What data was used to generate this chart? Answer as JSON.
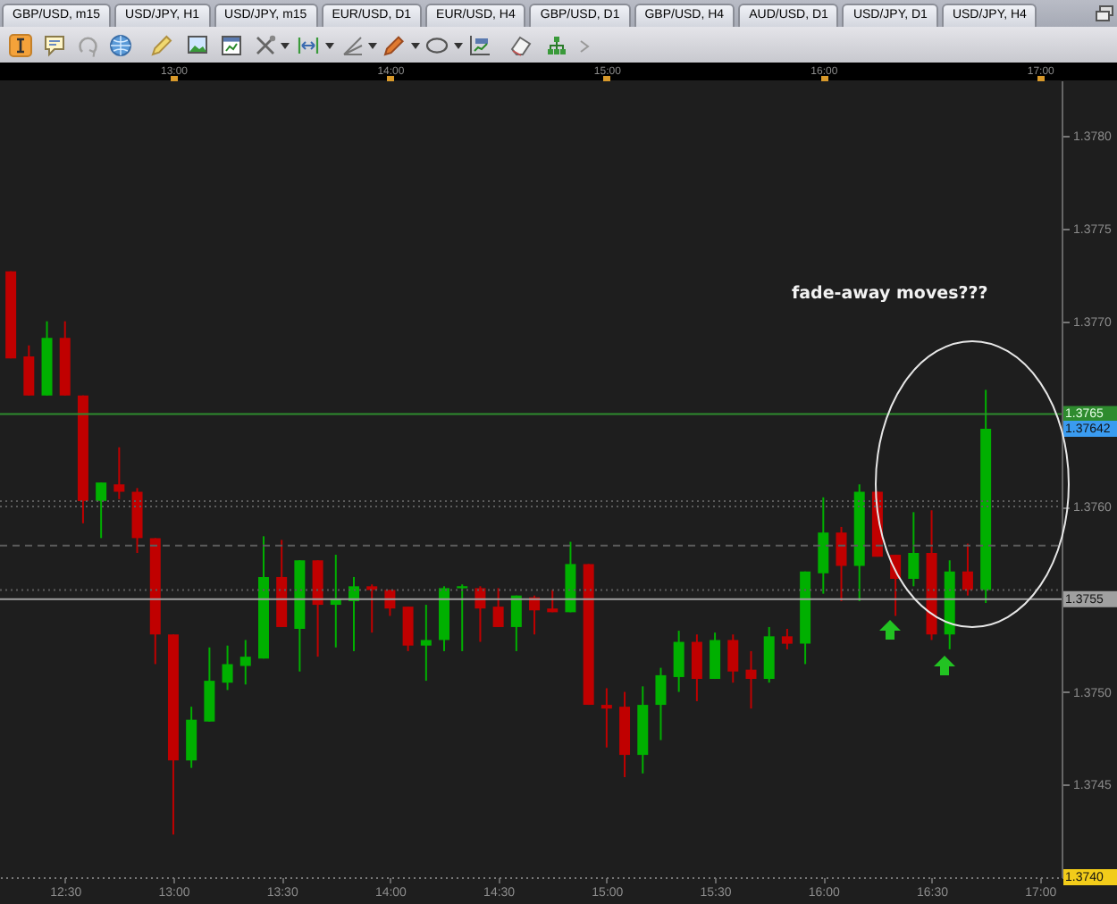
{
  "chart_data": {
    "type": "candlestick",
    "x": [
      12.25,
      12.3333,
      12.4167,
      12.5,
      12.5833,
      12.6667,
      12.75,
      12.8333,
      12.9167,
      13,
      13.0833,
      13.1667,
      13.25,
      13.3333,
      13.4167,
      13.5,
      13.5833,
      13.6667,
      13.75,
      13.8333,
      13.9167,
      14,
      14.0833,
      14.1667,
      14.25,
      14.3333,
      14.4167,
      14.5,
      14.5833,
      14.6667,
      14.75,
      14.8333,
      14.9167,
      15,
      15.0833,
      15.1667,
      15.25,
      15.3333,
      15.4167,
      15.5,
      15.5833,
      15.6667,
      15.75,
      15.8333,
      15.9167,
      16,
      16.0833,
      16.1667,
      16.25,
      16.3333,
      16.4167,
      16.5,
      16.5833,
      16.6667,
      16.75
    ],
    "ohlc": [
      [
        1.37727,
        1.37727,
        1.3768,
        1.3768
      ],
      [
        1.37681,
        1.37687,
        1.3766,
        1.3766
      ],
      [
        1.3766,
        1.377,
        1.3766,
        1.37691
      ],
      [
        1.37691,
        1.377,
        1.3766,
        1.3766
      ],
      [
        1.3766,
        1.3766,
        1.37591,
        1.37603
      ],
      [
        1.37603,
        1.37613,
        1.37583,
        1.37613
      ],
      [
        1.37612,
        1.37632,
        1.37604,
        1.37608
      ],
      [
        1.37608,
        1.3761,
        1.37575,
        1.37583
      ],
      [
        1.37583,
        1.37583,
        1.37515,
        1.37531
      ],
      [
        1.37531,
        1.37531,
        1.37423,
        1.37463
      ],
      [
        1.37463,
        1.37492,
        1.37459,
        1.37485
      ],
      [
        1.37484,
        1.37524,
        1.37484,
        1.37506
      ],
      [
        1.37505,
        1.37525,
        1.37501,
        1.37515
      ],
      [
        1.37514,
        1.37528,
        1.37504,
        1.37519
      ],
      [
        1.37518,
        1.37584,
        1.37518,
        1.37562
      ],
      [
        1.37562,
        1.37582,
        1.37535,
        1.37535
      ],
      [
        1.37534,
        1.37571,
        1.37511,
        1.37571
      ],
      [
        1.37571,
        1.37571,
        1.37519,
        1.37547
      ],
      [
        1.37547,
        1.37574,
        1.37524,
        1.3755
      ],
      [
        1.37549,
        1.37562,
        1.37522,
        1.37557
      ],
      [
        1.37557,
        1.37558,
        1.37532,
        1.37555
      ],
      [
        1.37555,
        1.37555,
        1.37541,
        1.37545
      ],
      [
        1.37546,
        1.37546,
        1.37522,
        1.37525
      ],
      [
        1.37525,
        1.37547,
        1.37506,
        1.37528
      ],
      [
        1.37528,
        1.37557,
        1.37522,
        1.37556
      ],
      [
        1.37556,
        1.37558,
        1.37522,
        1.37557
      ],
      [
        1.37556,
        1.37557,
        1.37527,
        1.37545
      ],
      [
        1.37546,
        1.37556,
        1.37535,
        1.37535
      ],
      [
        1.37535,
        1.37552,
        1.37522,
        1.37552
      ],
      [
        1.37551,
        1.37552,
        1.37531,
        1.37544
      ],
      [
        1.37545,
        1.37555,
        1.37543,
        1.37543
      ],
      [
        1.37543,
        1.37581,
        1.37543,
        1.37569
      ],
      [
        1.37569,
        1.37569,
        1.37493,
        1.37493
      ],
      [
        1.37493,
        1.37502,
        1.3747,
        1.37491
      ],
      [
        1.37492,
        1.375,
        1.37454,
        1.37466
      ],
      [
        1.37466,
        1.37503,
        1.37456,
        1.37493
      ],
      [
        1.37493,
        1.37513,
        1.37474,
        1.37509
      ],
      [
        1.37508,
        1.37533,
        1.375,
        1.37527
      ],
      [
        1.37527,
        1.37531,
        1.37495,
        1.37507
      ],
      [
        1.37507,
        1.37532,
        1.37507,
        1.37528
      ],
      [
        1.37528,
        1.37531,
        1.37505,
        1.37511
      ],
      [
        1.37512,
        1.37522,
        1.37491,
        1.37507
      ],
      [
        1.37507,
        1.37535,
        1.37505,
        1.3753
      ],
      [
        1.3753,
        1.37534,
        1.37523,
        1.37526
      ],
      [
        1.37526,
        1.37565,
        1.37515,
        1.37565
      ],
      [
        1.37564,
        1.37605,
        1.37553,
        1.37586
      ],
      [
        1.37586,
        1.37589,
        1.37549,
        1.37568
      ],
      [
        1.37568,
        1.37612,
        1.37549,
        1.37608
      ],
      [
        1.37608,
        1.37608,
        1.37573,
        1.37573
      ],
      [
        1.37574,
        1.37574,
        1.37541,
        1.37561
      ],
      [
        1.37561,
        1.37597,
        1.37557,
        1.37575
      ],
      [
        1.37575,
        1.37598,
        1.37528,
        1.37531
      ],
      [
        1.37531,
        1.37571,
        1.37523,
        1.37565
      ],
      [
        1.37565,
        1.3758,
        1.37552,
        1.37555
      ],
      [
        1.37555,
        1.37663,
        1.37548,
        1.37642
      ]
    ],
    "colors": [
      "#c00000",
      "#c00000",
      "#00b000",
      "#c00000",
      "#c00000",
      "#00b000",
      "#c00000",
      "#c00000",
      "#c00000",
      "#c00000",
      "#00b000",
      "#00b000",
      "#00b000",
      "#00b000",
      "#00b000",
      "#c00000",
      "#00b000",
      "#c00000",
      "#00b000",
      "#00b000",
      "#c00000",
      "#c00000",
      "#c00000",
      "#00b000",
      "#00b000",
      "#00b000",
      "#c00000",
      "#c00000",
      "#00b000",
      "#c00000",
      "#c00000",
      "#00b000",
      "#c00000",
      "#c00000",
      "#c00000",
      "#00b000",
      "#00b000",
      "#00b000",
      "#c00000",
      "#00b000",
      "#c00000",
      "#c00000",
      "#00b000",
      "#c00000",
      "#00b000",
      "#00b000",
      "#c00000",
      "#00b000",
      "#c00000",
      "#c00000",
      "#00b000",
      "#c00000",
      "#00b000",
      "#c00000",
      "#00b000"
    ],
    "xlim": [
      12.2,
      17.1
    ],
    "xticks": [
      {
        "value": 12.5,
        "label": "12:30"
      },
      {
        "value": 13,
        "label": "13:00"
      },
      {
        "value": 13.5,
        "label": "13:30"
      },
      {
        "value": 14,
        "label": "14:00"
      },
      {
        "value": 14.5,
        "label": "14:30"
      },
      {
        "value": 15,
        "label": "15:00"
      },
      {
        "value": 15.5,
        "label": "15:30"
      },
      {
        "value": 16,
        "label": "16:00"
      },
      {
        "value": 16.5,
        "label": "16:30"
      },
      {
        "value": 17,
        "label": "17:00"
      }
    ],
    "x2lim": [
      12.2,
      17.1
    ],
    "x2ticks": [
      {
        "value": 13,
        "label": "13:00"
      },
      {
        "value": 14,
        "label": "14:00"
      },
      {
        "value": 15,
        "label": "15:00"
      },
      {
        "value": 16,
        "label": "16:00"
      },
      {
        "value": 17,
        "label": "17:00"
      }
    ],
    "ylim": [
      1.374,
      1.3783
    ],
    "yticks": [
      {
        "value": 1.374,
        "label": null
      },
      1.3745,
      {
        "value": 1.375,
        "label": "1.3750"
      },
      {
        "value": 1.3755,
        "label": null
      },
      {
        "value": 1.376,
        "label": "1.3760"
      },
      {
        "value": 1.3765,
        "label": null
      },
      {
        "value": 1.377,
        "label": "1.3770"
      },
      1.3775,
      {
        "value": 1.378,
        "label": "1.3780"
      }
    ],
    "ref_lines": [
      {
        "axis": "y",
        "value": 1.3765,
        "label": "1.3765",
        "color": "#2e8b2e",
        "line_style": "solid"
      },
      {
        "axis": "y",
        "value": 1.37603,
        "color": "#5c5c5c",
        "line_style": "dotted"
      },
      {
        "axis": "y",
        "value": 1.376,
        "color": "#5c5c5c",
        "line_style": "dotted"
      },
      {
        "axis": "y",
        "value": 1.37579,
        "color": "#5c5c5c",
        "line_style": "dashed"
      },
      {
        "axis": "y",
        "value": 1.37555,
        "color": "#5c5c5c",
        "line_style": "dotted"
      },
      {
        "axis": "y",
        "value": 1.3755,
        "label": "1.3755",
        "color": "#a0a0a0",
        "line_style": "solid"
      }
    ],
    "annotations": [
      "fade-away moves???",
      "GBP/USD, m15",
      "USD/JPY, H1",
      "USD/JPY, m15",
      "EUR/USD, D1",
      "EUR/USD, H4",
      "GBP/USD, D1",
      "GBP/USD, H4",
      "AUD/USD, D1",
      "USD/JPY, D1",
      "USD/JPY, H4",
      "1.37642",
      "1.3740"
    ]
  }
}
